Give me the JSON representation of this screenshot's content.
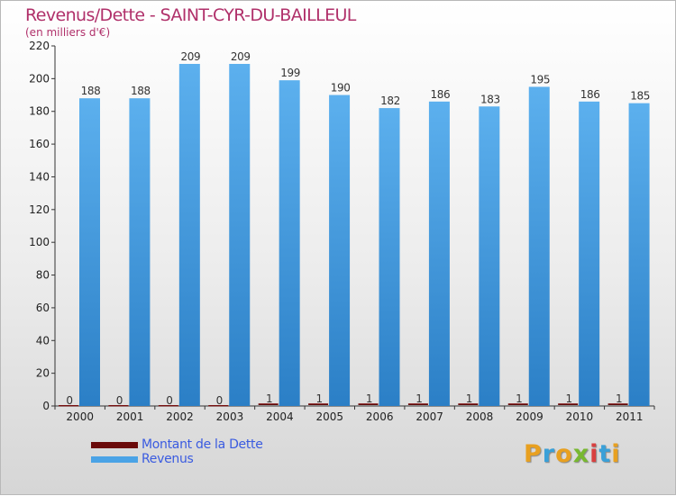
{
  "title": "Revenus/Dette - SAINT-CYR-DU-BAILLEUL",
  "subtitle": "(en milliers d'€)",
  "colors": {
    "debt": "#6b0a0a",
    "revenue": "#4aa3e6",
    "revenue_dark": "#2e86cf",
    "title": "#b0306a",
    "legend_text": "#3a5be0"
  },
  "legend": {
    "debt_label": "Montant de la Dette",
    "revenue_label": "Revenus"
  },
  "logo": "Proxiti",
  "chart_data": {
    "type": "bar",
    "title": "Revenus/Dette - SAINT-CYR-DU-BAILLEUL",
    "subtitle": "(en milliers d'€)",
    "xlabel": "",
    "ylabel": "",
    "ylim": [
      0,
      220
    ],
    "yticks": [
      0,
      20,
      40,
      60,
      80,
      100,
      120,
      140,
      160,
      180,
      200,
      220
    ],
    "grid": false,
    "legend_position": "bottom-left",
    "categories": [
      "2000",
      "2001",
      "2002",
      "2003",
      "2004",
      "2005",
      "2006",
      "2007",
      "2008",
      "2009",
      "2010",
      "2011"
    ],
    "series": [
      {
        "name": "Montant de la Dette",
        "values": [
          0,
          0,
          0,
          0,
          1,
          1,
          1,
          1,
          1,
          1,
          1,
          1
        ]
      },
      {
        "name": "Revenus",
        "values": [
          188,
          188,
          209,
          209,
          199,
          190,
          182,
          186,
          183,
          195,
          186,
          185
        ]
      }
    ]
  }
}
